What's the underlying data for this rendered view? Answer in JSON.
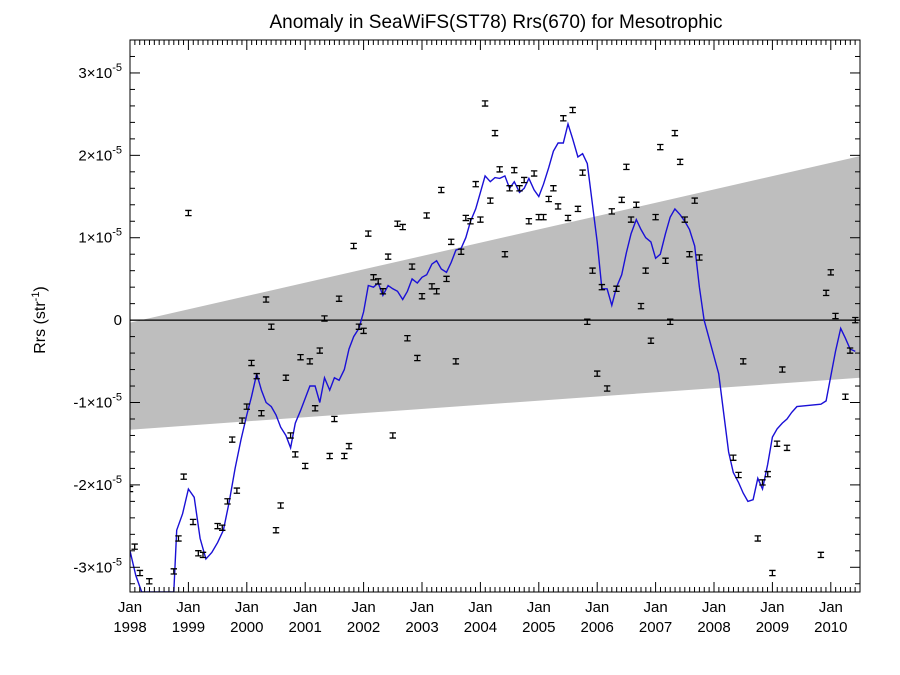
{
  "chart_data": {
    "type": "scatter",
    "title": "Anomaly in SeaWiFS(ST78) Rrs(670) for Mesotrophic",
    "ylabel": "Rrs (str",
    "ylabel_sup": "-1",
    "ylabel_close": ")",
    "xlim": [
      1998.0,
      2010.5
    ],
    "ylim": [
      -3.3e-05,
      3.4e-05
    ],
    "x_ticks": [
      {
        "value": 1998.0,
        "month": "Jan",
        "year": "1998"
      },
      {
        "value": 1999.0,
        "month": "Jan",
        "year": "1999"
      },
      {
        "value": 2000.0,
        "month": "Jan",
        "year": "2000"
      },
      {
        "value": 2001.0,
        "month": "Jan",
        "year": "2001"
      },
      {
        "value": 2002.0,
        "month": "Jan",
        "year": "2002"
      },
      {
        "value": 2003.0,
        "month": "Jan",
        "year": "2003"
      },
      {
        "value": 2004.0,
        "month": "Jan",
        "year": "2004"
      },
      {
        "value": 2005.0,
        "month": "Jan",
        "year": "2005"
      },
      {
        "value": 2006.0,
        "month": "Jan",
        "year": "2006"
      },
      {
        "value": 2007.0,
        "month": "Jan",
        "year": "2007"
      },
      {
        "value": 2008.0,
        "month": "Jan",
        "year": "2008"
      },
      {
        "value": 2009.0,
        "month": "Jan",
        "year": "2009"
      },
      {
        "value": 2010.0,
        "month": "Jan",
        "year": "2010"
      }
    ],
    "y_ticks": [
      {
        "value": 3e-05,
        "mant": "3",
        "exp": "-5"
      },
      {
        "value": 2e-05,
        "mant": "2",
        "exp": "-5"
      },
      {
        "value": 1e-05,
        "mant": "1",
        "exp": "-5"
      },
      {
        "value": 0,
        "mant": "0",
        "exp": ""
      },
      {
        "value": -1e-05,
        "mant": "-1",
        "exp": "-5"
      },
      {
        "value": -2e-05,
        "mant": "-2",
        "exp": "-5"
      },
      {
        "value": -3e-05,
        "mant": "-3",
        "exp": "-5"
      }
    ],
    "times_text": "×10",
    "trend_band": {
      "x": [
        1998.0,
        2010.5
      ],
      "upper": [
        -3e-07,
        1.99e-05
      ],
      "lower": [
        -1.33e-05,
        -7e-06
      ]
    },
    "zero_line": 0,
    "points": [
      [
        1998.0,
        -2.05e-05
      ],
      [
        1998.08,
        -2.75e-05
      ],
      [
        1998.17,
        -3.07e-05
      ],
      [
        1998.33,
        -3.17e-05
      ],
      [
        1998.75,
        -3.05e-05
      ],
      [
        1998.83,
        -2.65e-05
      ],
      [
        1998.92,
        -1.9e-05
      ],
      [
        1999.0,
        1.3e-05
      ],
      [
        1999.08,
        -2.45e-05
      ],
      [
        1999.17,
        -2.83e-05
      ],
      [
        1999.25,
        -2.85e-05
      ],
      [
        1999.5,
        -2.5e-05
      ],
      [
        1999.58,
        -2.52e-05
      ],
      [
        1999.67,
        -2.2e-05
      ],
      [
        1999.75,
        -1.45e-05
      ],
      [
        1999.83,
        -2.07e-05
      ],
      [
        1999.92,
        -1.22e-05
      ],
      [
        2000.0,
        -1.05e-05
      ],
      [
        2000.08,
        -5.2e-06
      ],
      [
        2000.17,
        -6.8e-06
      ],
      [
        2000.25,
        -1.13e-05
      ],
      [
        2000.33,
        2.5e-06
      ],
      [
        2000.42,
        -8e-07
      ],
      [
        2000.5,
        -2.55e-05
      ],
      [
        2000.58,
        -2.25e-05
      ],
      [
        2000.67,
        -7e-06
      ],
      [
        2000.75,
        -1.4e-05
      ],
      [
        2000.83,
        -1.63e-05
      ],
      [
        2000.92,
        -4.5e-06
      ],
      [
        2001.0,
        -1.77e-05
      ],
      [
        2001.08,
        -5e-06
      ],
      [
        2001.17,
        -1.07e-05
      ],
      [
        2001.25,
        -3.7e-06
      ],
      [
        2001.33,
        2e-07
      ],
      [
        2001.42,
        -1.65e-05
      ],
      [
        2001.5,
        -1.2e-05
      ],
      [
        2001.58,
        2.6e-06
      ],
      [
        2001.67,
        -1.65e-05
      ],
      [
        2001.75,
        -1.53e-05
      ],
      [
        2001.83,
        9e-06
      ],
      [
        2001.92,
        -8e-07
      ],
      [
        2002.0,
        -1.3e-06
      ],
      [
        2002.08,
        1.05e-05
      ],
      [
        2002.17,
        5.2e-06
      ],
      [
        2002.25,
        4.7e-06
      ],
      [
        2002.33,
        3.5e-06
      ],
      [
        2002.42,
        7.7e-06
      ],
      [
        2002.5,
        -1.4e-05
      ],
      [
        2002.58,
        1.17e-05
      ],
      [
        2002.67,
        1.13e-05
      ],
      [
        2002.75,
        -2.2e-06
      ],
      [
        2002.83,
        6.5e-06
      ],
      [
        2002.92,
        -4.6e-06
      ],
      [
        2003.0,
        2.9e-06
      ],
      [
        2003.08,
        1.27e-05
      ],
      [
        2003.17,
        4.1e-06
      ],
      [
        2003.25,
        3.5e-06
      ],
      [
        2003.33,
        1.58e-05
      ],
      [
        2003.42,
        5e-06
      ],
      [
        2003.5,
        9.5e-06
      ],
      [
        2003.58,
        -5e-06
      ],
      [
        2003.67,
        8.3e-06
      ],
      [
        2003.75,
        1.24e-05
      ],
      [
        2003.83,
        1.2e-05
      ],
      [
        2003.92,
        1.65e-05
      ],
      [
        2004.0,
        1.22e-05
      ],
      [
        2004.08,
        2.63e-05
      ],
      [
        2004.17,
        1.45e-05
      ],
      [
        2004.25,
        2.27e-05
      ],
      [
        2004.33,
        1.83e-05
      ],
      [
        2004.42,
        8e-06
      ],
      [
        2004.5,
        1.6e-05
      ],
      [
        2004.58,
        1.82e-05
      ],
      [
        2004.67,
        1.6e-05
      ],
      [
        2004.75,
        1.7e-05
      ],
      [
        2004.83,
        1.2e-05
      ],
      [
        2004.92,
        1.78e-05
      ],
      [
        2005.0,
        1.25e-05
      ],
      [
        2005.08,
        1.25e-05
      ],
      [
        2005.17,
        1.47e-05
      ],
      [
        2005.25,
        1.6e-05
      ],
      [
        2005.33,
        1.38e-05
      ],
      [
        2005.42,
        2.45e-05
      ],
      [
        2005.5,
        1.24e-05
      ],
      [
        2005.58,
        2.55e-05
      ],
      [
        2005.67,
        1.35e-05
      ],
      [
        2005.75,
        1.79e-05
      ],
      [
        2005.83,
        -2e-07
      ],
      [
        2005.92,
        6e-06
      ],
      [
        2006.0,
        -6.5e-06
      ],
      [
        2006.08,
        4e-06
      ],
      [
        2006.17,
        -8.3e-06
      ],
      [
        2006.25,
        1.32e-05
      ],
      [
        2006.33,
        3.8e-06
      ],
      [
        2006.42,
        1.46e-05
      ],
      [
        2006.5,
        1.86e-05
      ],
      [
        2006.58,
        1.22e-05
      ],
      [
        2006.67,
        1.4e-05
      ],
      [
        2006.75,
        1.7e-06
      ],
      [
        2006.83,
        6e-06
      ],
      [
        2006.92,
        -2.5e-06
      ],
      [
        2007.0,
        1.25e-05
      ],
      [
        2007.08,
        2.1e-05
      ],
      [
        2007.17,
        7.2e-06
      ],
      [
        2007.25,
        -2e-07
      ],
      [
        2007.33,
        2.27e-05
      ],
      [
        2007.42,
        1.92e-05
      ],
      [
        2007.5,
        1.22e-05
      ],
      [
        2007.58,
        8e-06
      ],
      [
        2007.67,
        1.45e-05
      ],
      [
        2007.75,
        7.6e-06
      ],
      [
        2008.33,
        -1.67e-05
      ],
      [
        2008.42,
        -1.88e-05
      ],
      [
        2008.5,
        -5e-06
      ],
      [
        2008.75,
        -2.65e-05
      ],
      [
        2008.83,
        -1.97e-05
      ],
      [
        2008.92,
        -1.87e-05
      ],
      [
        2009.0,
        -3.07e-05
      ],
      [
        2009.08,
        -1.5e-05
      ],
      [
        2009.17,
        -6e-06
      ],
      [
        2009.25,
        -1.55e-05
      ],
      [
        2009.83,
        -2.85e-05
      ],
      [
        2009.92,
        3.3e-06
      ],
      [
        2010.0,
        5.8e-06
      ],
      [
        2010.08,
        5e-07
      ],
      [
        2010.25,
        -9.3e-06
      ],
      [
        2010.33,
        -3.7e-06
      ],
      [
        2010.42,
        0.0
      ]
    ],
    "line": [
      [
        1998.0,
        -2.8e-05
      ],
      [
        1998.1,
        -3.1e-05
      ],
      [
        1998.2,
        -3.3e-05
      ],
      [
        1998.75,
        -3.3e-05
      ],
      [
        1998.8,
        -2.55e-05
      ],
      [
        1998.9,
        -2.35e-05
      ],
      [
        1999.0,
        -2.05e-05
      ],
      [
        1999.1,
        -2.15e-05
      ],
      [
        1999.2,
        -2.65e-05
      ],
      [
        1999.3,
        -2.9e-05
      ],
      [
        1999.4,
        -2.82e-05
      ],
      [
        1999.5,
        -2.7e-05
      ],
      [
        1999.6,
        -2.55e-05
      ],
      [
        1999.7,
        -2.2e-05
      ],
      [
        1999.8,
        -1.8e-05
      ],
      [
        1999.9,
        -1.45e-05
      ],
      [
        2000.0,
        -1.15e-05
      ],
      [
        2000.08,
        -9.3e-06
      ],
      [
        2000.17,
        -6.5e-06
      ],
      [
        2000.25,
        -8.5e-06
      ],
      [
        2000.33,
        -1e-05
      ],
      [
        2000.42,
        -1.05e-05
      ],
      [
        2000.5,
        -1.15e-05
      ],
      [
        2000.58,
        -1.3e-05
      ],
      [
        2000.67,
        -1.4e-05
      ],
      [
        2000.75,
        -1.55e-05
      ],
      [
        2000.83,
        -1.25e-05
      ],
      [
        2000.92,
        -1.1e-05
      ],
      [
        2001.0,
        -9.5e-06
      ],
      [
        2001.08,
        -8e-06
      ],
      [
        2001.17,
        -8e-06
      ],
      [
        2001.25,
        -1e-05
      ],
      [
        2001.33,
        -7e-06
      ],
      [
        2001.42,
        -8.5e-06
      ],
      [
        2001.5,
        -7e-06
      ],
      [
        2001.58,
        -7.3e-06
      ],
      [
        2001.67,
        -6e-06
      ],
      [
        2001.75,
        -3.5e-06
      ],
      [
        2001.83,
        -2e-06
      ],
      [
        2001.92,
        -1e-06
      ],
      [
        2002.0,
        1e-06
      ],
      [
        2002.08,
        4.2e-06
      ],
      [
        2002.17,
        4e-06
      ],
      [
        2002.25,
        4.5e-06
      ],
      [
        2002.33,
        3e-06
      ],
      [
        2002.42,
        4.2e-06
      ],
      [
        2002.5,
        3.8e-06
      ],
      [
        2002.58,
        3.5e-06
      ],
      [
        2002.67,
        2.5e-06
      ],
      [
        2002.75,
        3.5e-06
      ],
      [
        2002.83,
        5e-06
      ],
      [
        2002.92,
        4.5e-06
      ],
      [
        2003.0,
        5.2e-06
      ],
      [
        2003.08,
        5.5e-06
      ],
      [
        2003.17,
        6.8e-06
      ],
      [
        2003.25,
        7.2e-06
      ],
      [
        2003.33,
        6.2e-06
      ],
      [
        2003.42,
        5.8e-06
      ],
      [
        2003.5,
        7e-06
      ],
      [
        2003.58,
        8.5e-06
      ],
      [
        2003.67,
        8.7e-06
      ],
      [
        2003.75,
        1e-05
      ],
      [
        2003.83,
        1.2e-05
      ],
      [
        2003.92,
        1.35e-05
      ],
      [
        2004.0,
        1.55e-05
      ],
      [
        2004.08,
        1.75e-05
      ],
      [
        2004.17,
        1.68e-05
      ],
      [
        2004.25,
        1.73e-05
      ],
      [
        2004.33,
        1.72e-05
      ],
      [
        2004.42,
        1.75e-05
      ],
      [
        2004.5,
        1.6e-05
      ],
      [
        2004.58,
        1.68e-05
      ],
      [
        2004.67,
        1.55e-05
      ],
      [
        2004.75,
        1.6e-05
      ],
      [
        2004.83,
        1.72e-05
      ],
      [
        2004.92,
        1.58e-05
      ],
      [
        2005.0,
        1.5e-05
      ],
      [
        2005.08,
        1.65e-05
      ],
      [
        2005.17,
        1.85e-05
      ],
      [
        2005.25,
        2.05e-05
      ],
      [
        2005.33,
        2.15e-05
      ],
      [
        2005.42,
        2.15e-05
      ],
      [
        2005.5,
        2.38e-05
      ],
      [
        2005.58,
        2.2e-05
      ],
      [
        2005.67,
        1.98e-05
      ],
      [
        2005.75,
        2.02e-05
      ],
      [
        2005.83,
        1.9e-05
      ],
      [
        2005.92,
        1.4e-05
      ],
      [
        2006.0,
        9.5e-06
      ],
      [
        2006.08,
        3.8e-06
      ],
      [
        2006.17,
        3.8e-06
      ],
      [
        2006.25,
        1.8e-06
      ],
      [
        2006.33,
        4e-06
      ],
      [
        2006.42,
        5.5e-06
      ],
      [
        2006.5,
        8.2e-06
      ],
      [
        2006.58,
        1.05e-05
      ],
      [
        2006.67,
        1.22e-05
      ],
      [
        2006.75,
        1.1e-05
      ],
      [
        2006.83,
        1e-05
      ],
      [
        2006.92,
        9.5e-06
      ],
      [
        2007.0,
        7.5e-06
      ],
      [
        2007.08,
        8e-06
      ],
      [
        2007.17,
        1.05e-05
      ],
      [
        2007.25,
        1.25e-05
      ],
      [
        2007.33,
        1.35e-05
      ],
      [
        2007.42,
        1.28e-05
      ],
      [
        2007.5,
        1.2e-05
      ],
      [
        2007.58,
        1.1e-05
      ],
      [
        2007.67,
        9e-06
      ],
      [
        2007.75,
        4e-06
      ],
      [
        2007.83,
        0.0
      ],
      [
        2008.08,
        -6.5e-06
      ],
      [
        2008.17,
        -1.15e-05
      ],
      [
        2008.25,
        -1.6e-05
      ],
      [
        2008.33,
        -1.85e-05
      ],
      [
        2008.42,
        -1.97e-05
      ],
      [
        2008.5,
        -2.1e-05
      ],
      [
        2008.58,
        -2.2e-05
      ],
      [
        2008.67,
        -2.18e-05
      ],
      [
        2008.75,
        -1.92e-05
      ],
      [
        2008.83,
        -2.05e-05
      ],
      [
        2008.92,
        -1.75e-05
      ],
      [
        2009.0,
        -1.42e-05
      ],
      [
        2009.08,
        -1.32e-05
      ],
      [
        2009.17,
        -1.25e-05
      ],
      [
        2009.25,
        -1.2e-05
      ],
      [
        2009.33,
        -1.12e-05
      ],
      [
        2009.42,
        -1.05e-05
      ],
      [
        2009.83,
        -1.02e-05
      ],
      [
        2009.92,
        -9.8e-06
      ],
      [
        2010.0,
        -6.8e-06
      ],
      [
        2010.08,
        -3.8e-06
      ],
      [
        2010.17,
        -1e-06
      ],
      [
        2010.25,
        -2.2e-06
      ],
      [
        2010.33,
        -3.5e-06
      ],
      [
        2010.42,
        -3.8e-06
      ]
    ],
    "colors": {
      "line": "#1a10d6",
      "band": "#bebebe",
      "axis": "#000000",
      "marker": "#000000"
    }
  }
}
